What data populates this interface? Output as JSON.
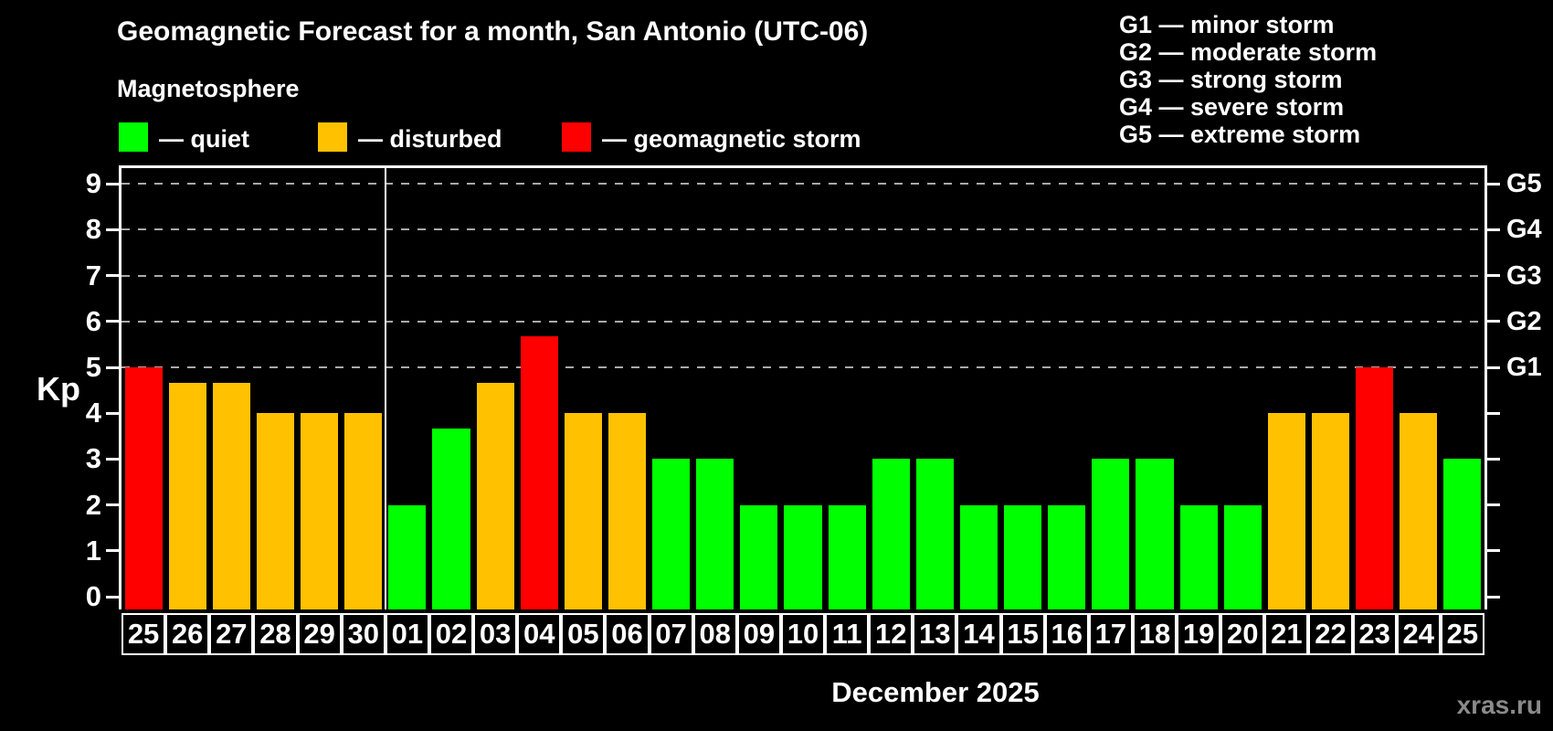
{
  "title": "Geomagnetic Forecast for a month, San Antonio (UTC-06)",
  "subtitle": "Magnetosphere",
  "watermark": "xras.ru",
  "status_colors": {
    "quiet": "#00ff00",
    "disturbed": "#ffc100",
    "storm": "#ff0000"
  },
  "legend": {
    "items": [
      {
        "status": "quiet",
        "label": "— quiet"
      },
      {
        "status": "disturbed",
        "label": "— disturbed"
      },
      {
        "status": "storm",
        "label": "— geomagnetic storm"
      }
    ]
  },
  "g_scale_legend": {
    "lines": [
      "G1 — minor storm",
      "G2 — moderate storm",
      "G3 — strong storm",
      "G4 — severe storm",
      "G5 — extreme storm"
    ]
  },
  "chart_data": {
    "type": "bar",
    "ylabel": "Kp",
    "xlabel": "December 2025",
    "ylim": [
      0,
      9.35
    ],
    "yticks": [
      0,
      1,
      2,
      3,
      4,
      5,
      6,
      7,
      8,
      9
    ],
    "grid_on": true,
    "gridline_kp_levels": [
      5,
      6,
      7,
      8,
      9
    ],
    "legend_position": "top",
    "right_axis_labels": [
      {
        "kp": 5,
        "text": "G1"
      },
      {
        "kp": 6,
        "text": "G2"
      },
      {
        "kp": 7,
        "text": "G3"
      },
      {
        "kp": 8,
        "text": "G4"
      },
      {
        "kp": 9,
        "text": "G5"
      }
    ],
    "month_separator_after_index": 5,
    "categories": [
      "25",
      "26",
      "27",
      "28",
      "29",
      "30",
      "01",
      "02",
      "03",
      "04",
      "05",
      "06",
      "07",
      "08",
      "09",
      "10",
      "11",
      "12",
      "13",
      "14",
      "15",
      "16",
      "17",
      "18",
      "19",
      "20",
      "21",
      "22",
      "23",
      "24",
      "25"
    ],
    "values": [
      5,
      4.67,
      4.67,
      4,
      4,
      4,
      2,
      3.67,
      4.67,
      5.67,
      4,
      4,
      3,
      3,
      2,
      2,
      2,
      3,
      3,
      2,
      2,
      2,
      3,
      3,
      2,
      2,
      4,
      4,
      5,
      4,
      3
    ],
    "statuses": [
      "storm",
      "disturbed",
      "disturbed",
      "disturbed",
      "disturbed",
      "disturbed",
      "quiet",
      "quiet",
      "disturbed",
      "storm",
      "disturbed",
      "disturbed",
      "quiet",
      "quiet",
      "quiet",
      "quiet",
      "quiet",
      "quiet",
      "quiet",
      "quiet",
      "quiet",
      "quiet",
      "quiet",
      "quiet",
      "quiet",
      "quiet",
      "disturbed",
      "disturbed",
      "storm",
      "disturbed",
      "quiet"
    ]
  }
}
